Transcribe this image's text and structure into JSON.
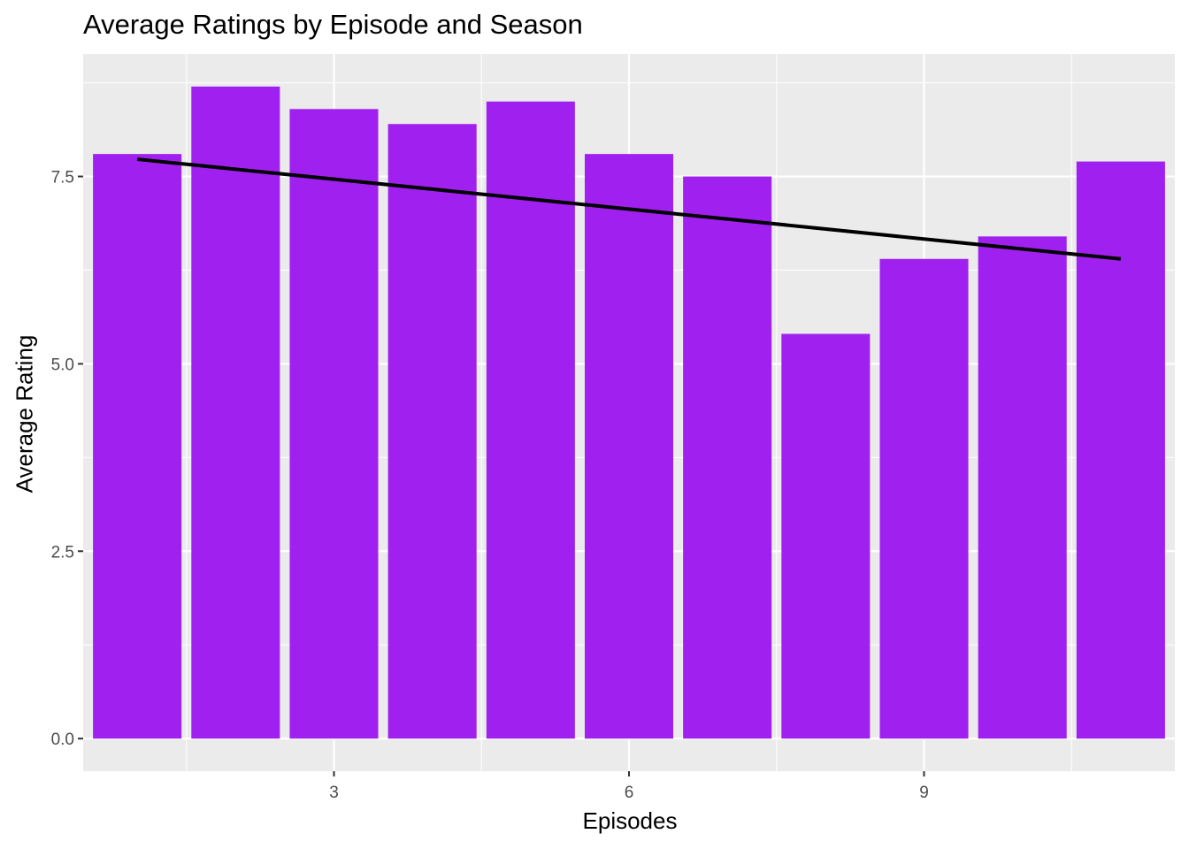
{
  "chart_data": {
    "type": "bar",
    "title": "Average Ratings by Episode and Season",
    "xlabel": "Episodes",
    "ylabel": "Average Rating",
    "x": [
      1,
      2,
      3,
      4,
      5,
      6,
      7,
      8,
      9,
      10,
      11
    ],
    "values": [
      7.8,
      8.7,
      8.4,
      8.2,
      8.5,
      7.8,
      7.5,
      5.4,
      6.4,
      6.7,
      7.7
    ],
    "xlim": [
      0.45,
      11.55
    ],
    "ylim": [
      -0.435,
      9.135
    ],
    "x_ticks": [
      3,
      6,
      9
    ],
    "y_ticks": [
      0.0,
      2.5,
      5.0,
      7.5
    ],
    "x_tick_labels": [
      "3",
      "6",
      "9"
    ],
    "y_tick_labels": [
      "0.0",
      "2.5",
      "5.0",
      "7.5"
    ],
    "trend_line": {
      "x": [
        1,
        11
      ],
      "y": [
        7.73,
        6.4
      ]
    },
    "grid": true,
    "legend": "none",
    "colors": {
      "bar": "#A020F0",
      "trend": "#000000",
      "panel_background": "#EBEBEB",
      "grid": "#FFFFFF",
      "tick_text": "#4D4D4D"
    }
  }
}
